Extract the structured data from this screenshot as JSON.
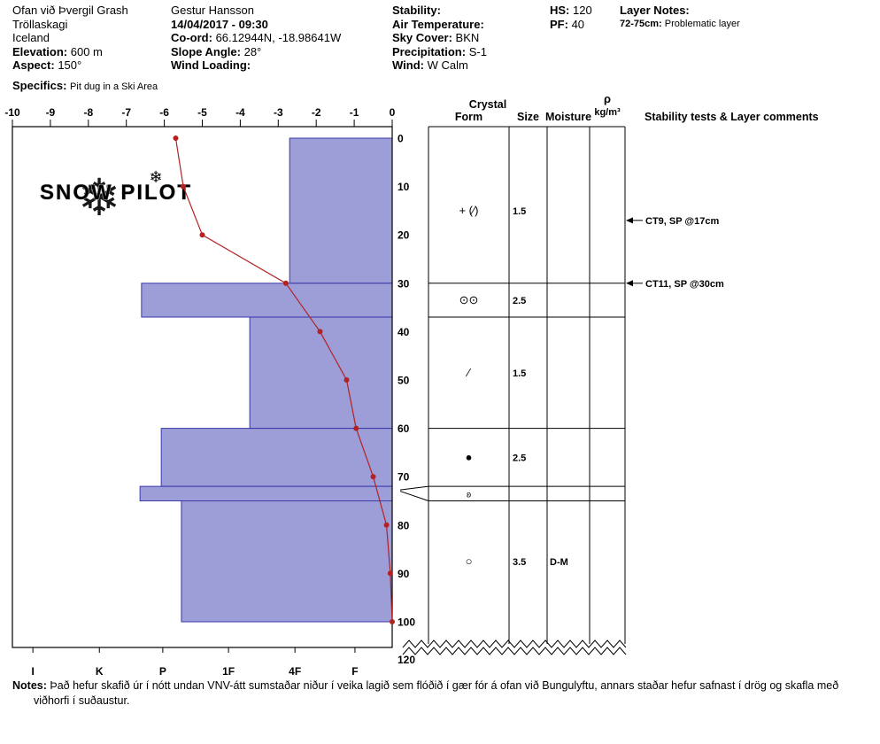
{
  "header": {
    "site": {
      "name": "Ofan við Þvergil Grash",
      "region": "Tröllaskagi",
      "country": "Iceland",
      "elevation_label": "Elevation:",
      "elevation": "600 m",
      "aspect_label": "Aspect:",
      "aspect": "150°",
      "specifics_label": "Specifics:",
      "specifics": "Pit dug in a Ski Area"
    },
    "observer": {
      "name": "Gestur Hansson",
      "datetime": "14/04/2017 - 09:30",
      "coord_label": "Co-ord:",
      "coord": "66.12944N, -18.98641W",
      "slope_label": "Slope Angle:",
      "slope": "28°",
      "wind_loading_label": "Wind Loading:",
      "wind_loading": ""
    },
    "conditions": {
      "stability_label": "Stability:",
      "stability": "",
      "air_temp_label": "Air Temperature:",
      "air_temp": "",
      "sky_label": "Sky Cover:",
      "sky": "BKN",
      "precip_label": "Precipitation:",
      "precip": "S-1",
      "wind_label": "Wind:",
      "wind": "W Calm"
    },
    "totals": {
      "hs_label": "HS:",
      "hs": "120",
      "pf_label": "PF:",
      "pf": "40"
    },
    "layer_notes": {
      "title": "Layer Notes:",
      "note_depth": "72-75cm:",
      "note_text": "Problematic layer"
    }
  },
  "notes": {
    "label": "Notes:",
    "text": "Það hefur skafið úr í nótt undan VNV-átt sumstaðar niður í veika lagið sem flóðið í gær fór á ofan við Bungulyftu, annars staðar hefur safnast í drög og skafla með viðhorfi í suðaustur."
  },
  "chart_data": {
    "type": "snow-pit-profile",
    "watermark": "SNOW PILOT",
    "temp_axis": {
      "ticks": [
        -10,
        -9,
        -8,
        -7,
        -6,
        -5,
        -4,
        -3,
        -2,
        -1,
        0
      ],
      "min": -10,
      "max": 0,
      "unit": "°C"
    },
    "depth_axis": {
      "ticks": [
        0,
        10,
        20,
        30,
        40,
        50,
        60,
        70,
        80,
        90,
        100
      ],
      "break_label": "120",
      "unit": "cm"
    },
    "hardness_axis": {
      "labels": [
        "I",
        "K",
        "P",
        "1F",
        "4F",
        "F"
      ],
      "positions": [
        9.46,
        7.71,
        6.04,
        4.31,
        2.56,
        0.98
      ]
    },
    "temperature_profile": {
      "depths": [
        0,
        10,
        20,
        30,
        40,
        50,
        60,
        70,
        80,
        90,
        100
      ],
      "temps_c": [
        -5.7,
        -5.5,
        -5.0,
        -2.8,
        -1.9,
        -1.2,
        -0.95,
        -0.5,
        -0.15,
        -0.05,
        0
      ]
    },
    "layers": [
      {
        "top_cm": 0,
        "bottom_cm": 30,
        "hardness": "4F",
        "hardness_extent": 2.7,
        "form": "+ (∕)",
        "size_mm": "1.5",
        "moisture": ""
      },
      {
        "top_cm": 30,
        "bottom_cm": 37,
        "hardness": "P+",
        "hardness_extent": 6.6,
        "form": "⊙⊙",
        "size_mm": "2.5",
        "moisture": ""
      },
      {
        "top_cm": 37,
        "bottom_cm": 60,
        "hardness": "1F+",
        "hardness_extent": 3.75,
        "form": "∕",
        "size_mm": "1.5",
        "moisture": ""
      },
      {
        "top_cm": 60,
        "bottom_cm": 72,
        "hardness": "P",
        "hardness_extent": 6.08,
        "form": "●",
        "size_mm": "2.5",
        "moisture": ""
      },
      {
        "top_cm": 72,
        "bottom_cm": 75,
        "hardness": "P+",
        "hardness_extent": 6.64,
        "form": "ʚ",
        "size_mm": "",
        "moisture": ""
      },
      {
        "top_cm": 75,
        "bottom_cm": 100,
        "hardness": "P-",
        "hardness_extent": 5.55,
        "form": "○",
        "size_mm": "3.5",
        "moisture": "D-M"
      }
    ],
    "stability_tests": [
      {
        "label": "CT9, SP @17cm",
        "depth_cm": 17
      },
      {
        "label": "CT11, SP @30cm",
        "depth_cm": 30
      }
    ],
    "table_headers": {
      "crystal": "Crystal",
      "form": "Form",
      "size": "Size",
      "moisture": "Moisture",
      "rho": "ρ",
      "rho_units": "kg/m³",
      "comments": "Stability tests & Layer comments"
    },
    "colors": {
      "bar_fill": "#9d9dd8",
      "bar_border": "#3939a8",
      "temp_line": "#b22222"
    }
  }
}
